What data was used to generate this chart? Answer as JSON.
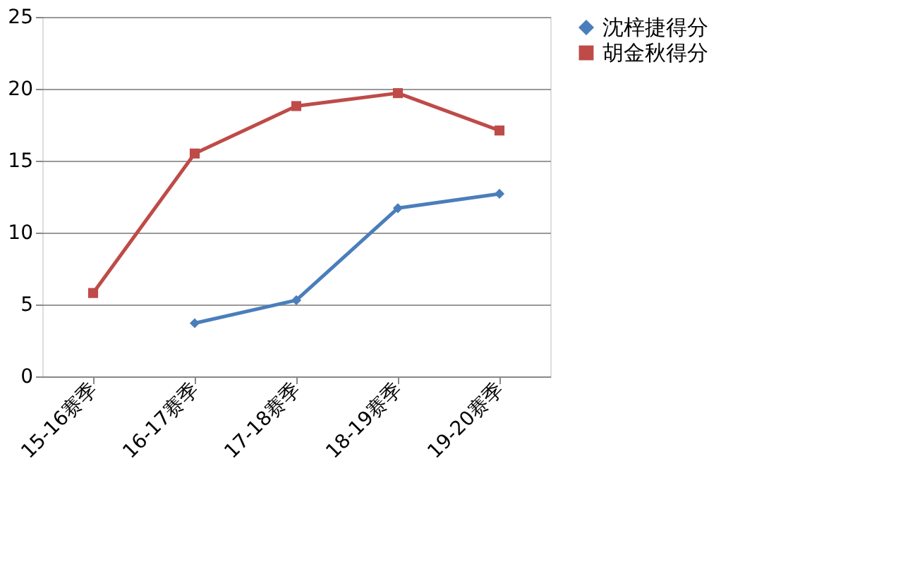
{
  "chart_data": {
    "type": "line",
    "categories": [
      "15-16赛季",
      "16-17赛季",
      "17-18赛季",
      "18-19赛季",
      "19-20赛季"
    ],
    "series": [
      {
        "name": "沈梓捷得分",
        "color": "#4a7ebb",
        "marker": "diamond",
        "values": [
          null,
          3.7,
          5.3,
          11.7,
          12.7
        ]
      },
      {
        "name": "胡金秋得分",
        "color": "#be4b48",
        "marker": "square",
        "values": [
          5.8,
          15.5,
          18.8,
          19.7,
          17.1
        ]
      }
    ],
    "ylim": [
      0,
      25
    ],
    "yticks": [
      0,
      5,
      10,
      15,
      20,
      25
    ],
    "grid": "y",
    "legend": "right",
    "line_style": "solid"
  }
}
